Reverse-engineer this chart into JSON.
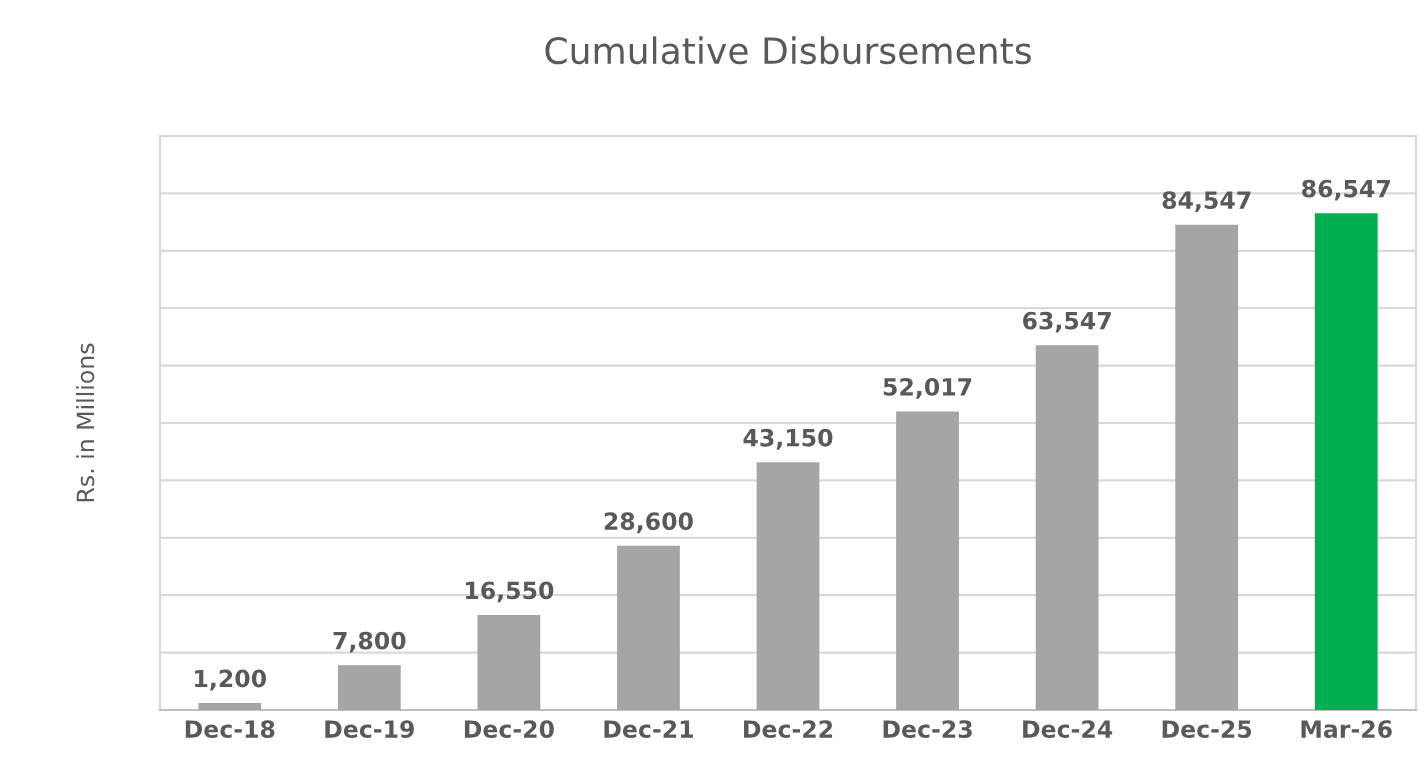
{
  "chart_data": {
    "type": "bar",
    "title": "Cumulative Disbursements",
    "ylabel": "Rs. in Millions",
    "categories": [
      "Dec-18",
      "Dec-19",
      "Dec-20",
      "Dec-21",
      "Dec-22",
      "Dec-23",
      "Dec-24",
      "Dec-25",
      "Mar-26"
    ],
    "values": [
      1200,
      7800,
      16550,
      28600,
      43150,
      52017,
      63547,
      84547,
      86547
    ],
    "colors": [
      "#a5a5a5",
      "#a5a5a5",
      "#a5a5a5",
      "#a5a5a5",
      "#a5a5a5",
      "#a5a5a5",
      "#a5a5a5",
      "#a5a5a5",
      "#00b050"
    ],
    "value_labels": [
      "1,200",
      "7,800",
      "16,550",
      "28,600",
      "43,150",
      "52,017",
      "63,547",
      "84,547",
      "86,547"
    ],
    "ylim": [
      0,
      100000
    ],
    "yticks": [
      {
        "value": 0,
        "label": null
      },
      {
        "value": 10000,
        "label": null
      },
      {
        "value": 20000,
        "label": null
      },
      {
        "value": 30000,
        "label": null
      },
      {
        "value": 40000,
        "label": null
      },
      {
        "value": 50000,
        "label": null
      },
      {
        "value": 60000,
        "label": null
      },
      {
        "value": 70000,
        "label": null
      },
      {
        "value": 80000,
        "label": null
      },
      {
        "value": 90000,
        "label": null
      },
      {
        "value": 100000,
        "label": null
      }
    ],
    "grid": "y",
    "tick_labels": "x",
    "legend": false
  }
}
